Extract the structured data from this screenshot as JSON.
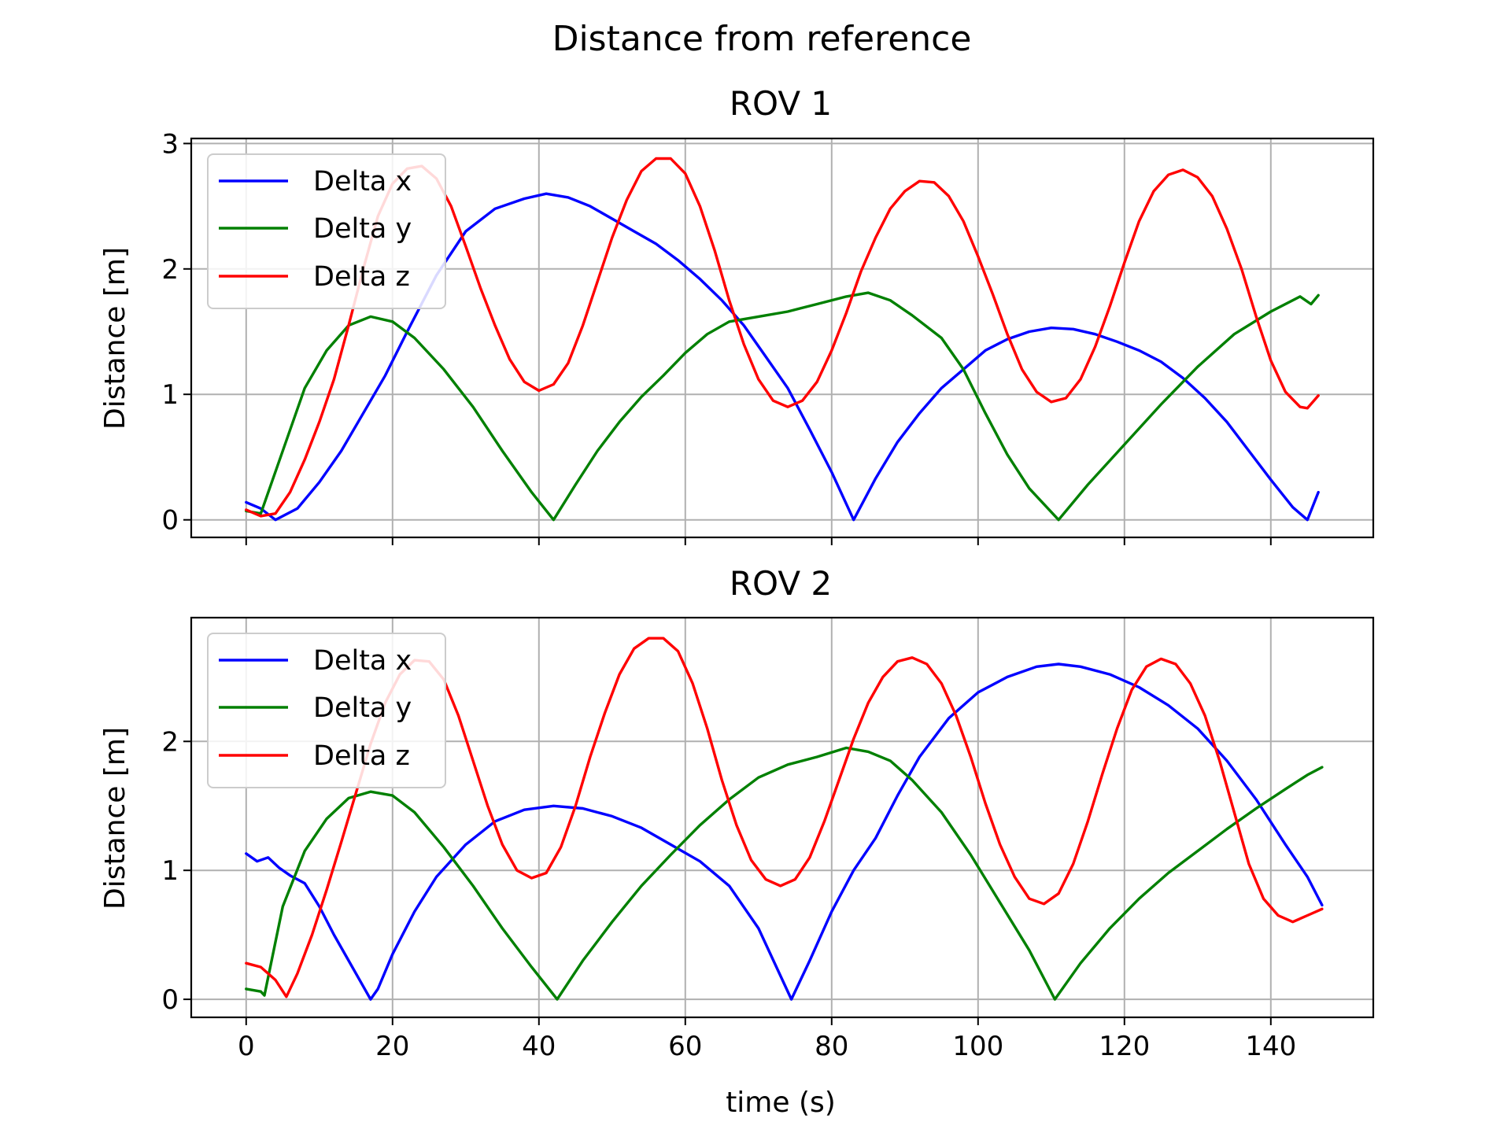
{
  "figure": {
    "suptitle": "Distance from reference"
  },
  "chart_data": [
    {
      "type": "line",
      "title": "ROV 1",
      "xlabel": "",
      "ylabel": "Distance [m]",
      "xlim": [
        -7.5,
        154
      ],
      "ylim": [
        -0.14,
        3.04
      ],
      "xticks": [
        0,
        20,
        40,
        60,
        80,
        100,
        120,
        140
      ],
      "xtick_labels_visible": false,
      "yticks": [
        0,
        1,
        2,
        3
      ],
      "grid": true,
      "legend": "top-left",
      "series": [
        {
          "name": "Delta x",
          "color": "#0000ff",
          "x": [
            0,
            2,
            4,
            7,
            10,
            13,
            16,
            19,
            22,
            26,
            30,
            34,
            38,
            41,
            44,
            47,
            50,
            53,
            56,
            59,
            62,
            65,
            68,
            71,
            74,
            77,
            80,
            83,
            86,
            89,
            92,
            95,
            98,
            101,
            104,
            107,
            110,
            113,
            116,
            119,
            122,
            125,
            128,
            131,
            134,
            137,
            140,
            143,
            145,
            146.5
          ],
          "y": [
            0.14,
            0.09,
            0.0,
            0.09,
            0.3,
            0.55,
            0.85,
            1.15,
            1.5,
            1.95,
            2.3,
            2.48,
            2.56,
            2.6,
            2.57,
            2.5,
            2.4,
            2.3,
            2.2,
            2.07,
            1.92,
            1.75,
            1.55,
            1.3,
            1.05,
            0.72,
            0.38,
            0.0,
            0.33,
            0.62,
            0.85,
            1.05,
            1.2,
            1.35,
            1.44,
            1.5,
            1.53,
            1.52,
            1.48,
            1.42,
            1.35,
            1.26,
            1.13,
            0.97,
            0.78,
            0.55,
            0.32,
            0.1,
            0.0,
            0.22
          ]
        },
        {
          "name": "Delta y",
          "color": "#008000",
          "x": [
            0,
            2,
            5,
            8,
            11,
            14,
            17,
            20,
            23,
            27,
            31,
            35,
            39,
            42,
            45,
            48,
            51,
            54,
            57,
            60,
            63,
            66,
            70,
            74,
            78,
            82,
            85,
            88,
            91,
            95,
            98,
            101,
            104,
            107,
            111,
            115,
            120,
            125,
            130,
            135,
            140,
            144,
            145.5,
            146.5
          ],
          "y": [
            0.07,
            0.05,
            0.55,
            1.05,
            1.35,
            1.55,
            1.62,
            1.58,
            1.45,
            1.2,
            0.9,
            0.55,
            0.22,
            0.0,
            0.28,
            0.55,
            0.78,
            0.98,
            1.15,
            1.33,
            1.48,
            1.58,
            1.62,
            1.66,
            1.72,
            1.78,
            1.81,
            1.75,
            1.63,
            1.45,
            1.2,
            0.85,
            0.52,
            0.25,
            0.0,
            0.28,
            0.6,
            0.92,
            1.22,
            1.48,
            1.66,
            1.78,
            1.72,
            1.79
          ]
        },
        {
          "name": "Delta z",
          "color": "#ff0000",
          "x": [
            0,
            2,
            4,
            6,
            8,
            10,
            12,
            14,
            16,
            18,
            20,
            22,
            24,
            26,
            28,
            30,
            32,
            34,
            36,
            38,
            40,
            42,
            44,
            46,
            48,
            50,
            52,
            54,
            56,
            58,
            60,
            62,
            64,
            66,
            68,
            70,
            72,
            74,
            76,
            78,
            80,
            82,
            84,
            86,
            88,
            90,
            92,
            94,
            96,
            98,
            100,
            102,
            104,
            106,
            108,
            110,
            112,
            114,
            116,
            118,
            120,
            122,
            124,
            126,
            128,
            130,
            132,
            134,
            136,
            138,
            140,
            142,
            144,
            145,
            146.5
          ],
          "y": [
            0.08,
            0.03,
            0.05,
            0.22,
            0.48,
            0.78,
            1.12,
            1.55,
            2.0,
            2.42,
            2.68,
            2.8,
            2.82,
            2.72,
            2.5,
            2.18,
            1.85,
            1.55,
            1.28,
            1.1,
            1.03,
            1.08,
            1.25,
            1.55,
            1.9,
            2.25,
            2.55,
            2.78,
            2.88,
            2.88,
            2.76,
            2.5,
            2.15,
            1.75,
            1.4,
            1.12,
            0.95,
            0.9,
            0.95,
            1.1,
            1.35,
            1.65,
            1.98,
            2.25,
            2.48,
            2.62,
            2.7,
            2.69,
            2.58,
            2.38,
            2.1,
            1.8,
            1.48,
            1.2,
            1.02,
            0.94,
            0.97,
            1.12,
            1.38,
            1.7,
            2.05,
            2.38,
            2.62,
            2.75,
            2.79,
            2.73,
            2.58,
            2.32,
            2.0,
            1.62,
            1.27,
            1.02,
            0.9,
            0.89,
            0.99
          ]
        }
      ]
    },
    {
      "type": "line",
      "title": "ROV 2",
      "xlabel": "time (s)",
      "ylabel": "Distance [m]",
      "xlim": [
        -7.5,
        154
      ],
      "ylim": [
        -0.14,
        2.96
      ],
      "xticks": [
        0,
        20,
        40,
        60,
        80,
        100,
        120,
        140
      ],
      "xtick_labels_visible": true,
      "yticks": [
        0,
        1,
        2
      ],
      "grid": true,
      "legend": "top-left",
      "series": [
        {
          "name": "Delta x",
          "color": "#0000ff",
          "x": [
            0,
            1.5,
            3,
            4.5,
            6,
            8,
            10,
            12,
            14,
            16,
            17,
            18,
            20,
            23,
            26,
            30,
            34,
            38,
            42,
            46,
            50,
            54,
            58,
            62,
            66,
            70,
            74.5,
            77,
            80,
            83,
            86,
            89,
            92,
            96,
            100,
            104,
            108,
            111,
            114,
            118,
            122,
            126,
            130,
            134,
            138,
            142,
            145,
            147
          ],
          "y": [
            1.13,
            1.07,
            1.1,
            1.02,
            0.96,
            0.9,
            0.72,
            0.5,
            0.3,
            0.1,
            0.0,
            0.08,
            0.35,
            0.68,
            0.95,
            1.2,
            1.38,
            1.47,
            1.5,
            1.48,
            1.42,
            1.33,
            1.2,
            1.07,
            0.88,
            0.55,
            0.0,
            0.3,
            0.68,
            1.0,
            1.25,
            1.58,
            1.88,
            2.18,
            2.38,
            2.5,
            2.58,
            2.6,
            2.58,
            2.52,
            2.42,
            2.28,
            2.1,
            1.85,
            1.55,
            1.2,
            0.95,
            0.73
          ]
        },
        {
          "name": "Delta y",
          "color": "#008000",
          "x": [
            0,
            2,
            2.5,
            5,
            8,
            11,
            14,
            17,
            20,
            23,
            27,
            31,
            35,
            39,
            42.5,
            46,
            50,
            54,
            58,
            62,
            66,
            70,
            74,
            78,
            82,
            85,
            88,
            91,
            95,
            99,
            103,
            107,
            110.5,
            114,
            118,
            122,
            126,
            130,
            134,
            138,
            142,
            145,
            147
          ],
          "y": [
            0.08,
            0.06,
            0.03,
            0.72,
            1.15,
            1.4,
            1.56,
            1.61,
            1.58,
            1.45,
            1.18,
            0.88,
            0.55,
            0.25,
            0.0,
            0.3,
            0.6,
            0.88,
            1.12,
            1.35,
            1.55,
            1.72,
            1.82,
            1.88,
            1.95,
            1.92,
            1.85,
            1.7,
            1.45,
            1.12,
            0.75,
            0.38,
            0.0,
            0.28,
            0.55,
            0.78,
            0.98,
            1.15,
            1.32,
            1.48,
            1.63,
            1.74,
            1.8
          ]
        },
        {
          "name": "Delta z",
          "color": "#ff0000",
          "x": [
            0,
            2,
            4,
            5.5,
            7,
            9,
            11,
            13,
            15,
            17,
            19,
            21,
            23,
            25,
            27,
            29,
            31,
            33,
            35,
            37,
            39,
            41,
            43,
            45,
            47,
            49,
            51,
            53,
            55,
            57,
            59,
            61,
            63,
            65,
            67,
            69,
            71,
            73,
            75,
            77,
            79,
            81,
            83,
            85,
            87,
            89,
            91,
            93,
            95,
            97,
            99,
            101,
            103,
            105,
            107,
            109,
            111,
            113,
            115,
            117,
            119,
            121,
            123,
            125,
            127,
            129,
            131,
            133,
            135,
            137,
            139,
            141,
            143,
            145,
            147
          ],
          "y": [
            0.28,
            0.25,
            0.15,
            0.02,
            0.2,
            0.5,
            0.85,
            1.22,
            1.6,
            1.98,
            2.3,
            2.52,
            2.63,
            2.62,
            2.48,
            2.2,
            1.85,
            1.5,
            1.2,
            1.0,
            0.94,
            0.98,
            1.18,
            1.5,
            1.88,
            2.22,
            2.52,
            2.72,
            2.8,
            2.8,
            2.7,
            2.45,
            2.1,
            1.7,
            1.35,
            1.08,
            0.93,
            0.88,
            0.93,
            1.1,
            1.38,
            1.7,
            2.02,
            2.3,
            2.5,
            2.62,
            2.65,
            2.6,
            2.45,
            2.2,
            1.88,
            1.52,
            1.2,
            0.95,
            0.78,
            0.74,
            0.82,
            1.05,
            1.38,
            1.75,
            2.1,
            2.4,
            2.58,
            2.64,
            2.6,
            2.45,
            2.2,
            1.85,
            1.45,
            1.05,
            0.78,
            0.65,
            0.6,
            0.65,
            0.7
          ]
        }
      ]
    }
  ]
}
